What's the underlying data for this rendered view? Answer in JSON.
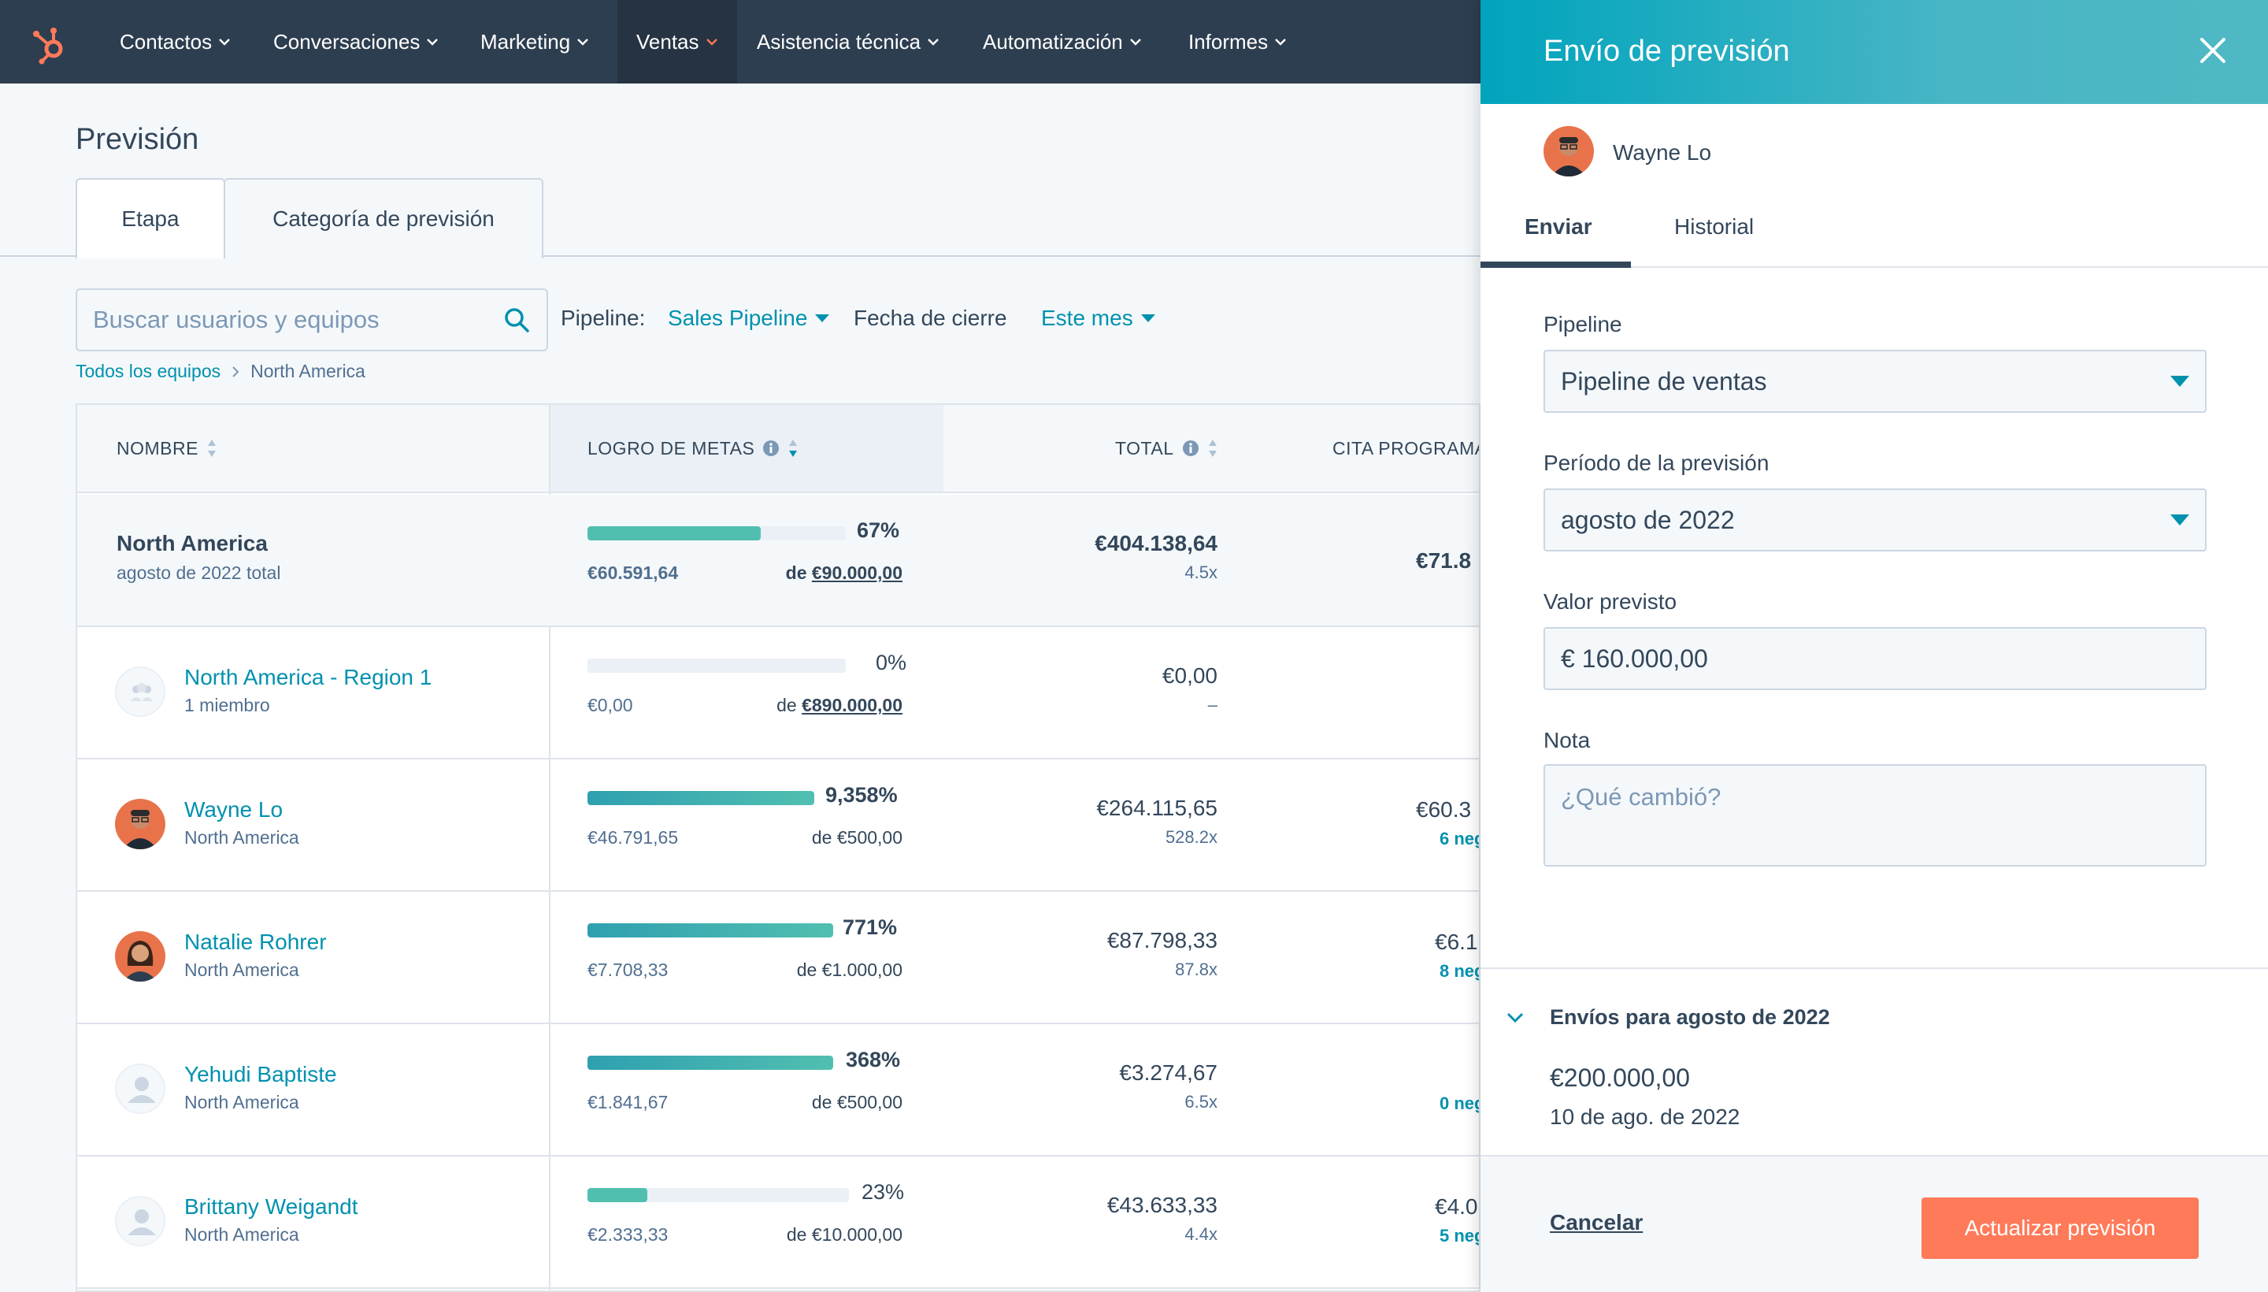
{
  "nav": {
    "items": [
      {
        "label": "Contactos"
      },
      {
        "label": "Conversaciones"
      },
      {
        "label": "Marketing"
      },
      {
        "label": "Ventas"
      },
      {
        "label": "Asistencia técnica"
      },
      {
        "label": "Automatización"
      },
      {
        "label": "Informes"
      }
    ],
    "active_label": "Ventas"
  },
  "page": {
    "title": "Previsión",
    "tabs": [
      "Etapa",
      "Categoría de previsión"
    ],
    "search_placeholder": "Buscar usuarios y equipos",
    "pipeline_label": "Pipeline:",
    "pipeline_value": "Sales Pipeline",
    "close_date_label": "Fecha de cierre",
    "close_date_value": "Este mes",
    "breadcrumb": {
      "root": "Todos los equipos",
      "current": "North America"
    }
  },
  "table": {
    "headers": {
      "name": "NOMBRE",
      "goal": "LOGRO DE METAS",
      "total": "TOTAL",
      "cita": "CITA PROGRAMA"
    },
    "rows": [
      {
        "name": "North America",
        "sub": "agosto de 2022 total",
        "pct": "67%",
        "progress": 0.67,
        "achieved": "€60.591,64",
        "goal_prefix": "de",
        "goal_value": "€90.000,00",
        "total": "€404.138,64",
        "mult": "4.5x",
        "cita": "€71.8",
        "cita_sub": ""
      },
      {
        "name": "North America - Region 1",
        "sub": "1 miembro",
        "pct": "0%",
        "progress": 0,
        "achieved": "€0,00",
        "goal_prefix": "de",
        "goal_value": "€890.000,00",
        "total": "€0,00",
        "mult": "–",
        "cita": "-",
        "cita_sub": ""
      },
      {
        "name": "Wayne Lo",
        "sub": "North America",
        "pct": "9,358%",
        "progress": 1,
        "achieved": "€46.791,65",
        "goal_prefix": "de",
        "goal_value": "€500,00",
        "total": "€264.115,65",
        "mult": "528.2x",
        "cita": "€60.3",
        "cita_sub": "6 neg"
      },
      {
        "name": "Natalie Rohrer",
        "sub": "North America",
        "pct": "771%",
        "progress": 1,
        "achieved": "€7.708,33",
        "goal_prefix": "de",
        "goal_value": "€1.000,00",
        "total": "€87.798,33",
        "mult": "87.8x",
        "cita": "€6.1",
        "cita_sub": "8 neg"
      },
      {
        "name": "Yehudi Baptiste",
        "sub": "North America",
        "pct": "368%",
        "progress": 1,
        "achieved": "€1.841,67",
        "goal_prefix": "de",
        "goal_value": "€500,00",
        "total": "€3.274,67",
        "mult": "6.5x",
        "cita": "-",
        "cita_sub": "0 neg"
      },
      {
        "name": "Brittany Weigandt",
        "sub": "North America",
        "pct": "23%",
        "progress": 0.23,
        "achieved": "€2.333,33",
        "goal_prefix": "de",
        "goal_value": "€10.000,00",
        "total": "€43.633,33",
        "mult": "4.4x",
        "cita": "€4.0",
        "cita_sub": "5 neg"
      }
    ]
  },
  "panel": {
    "title": "Envío de previsión",
    "owner": "Wayne Lo",
    "tabs": {
      "send": "Enviar",
      "history": "Historial"
    },
    "pipeline_label": "Pipeline",
    "pipeline_value": "Pipeline de ventas",
    "period_label": "Período de la previsión",
    "period_value": "agosto de 2022",
    "forecast_label": "Valor previsto",
    "forecast_value": "€ 160.000,00",
    "note_label": "Nota",
    "note_placeholder": "¿Qué cambió?",
    "submissions_title": "Envíos para agosto de 2022",
    "submission_amount": "€200.000,00",
    "submission_date": "10 de ago. de 2022",
    "cancel": "Cancelar",
    "update": "Actualizar previsión"
  },
  "colors": {
    "accent": "#0091ae",
    "orange": "#ff7a59",
    "nav_bg": "#2d3e50",
    "bar_teal": "#51bfb0"
  }
}
